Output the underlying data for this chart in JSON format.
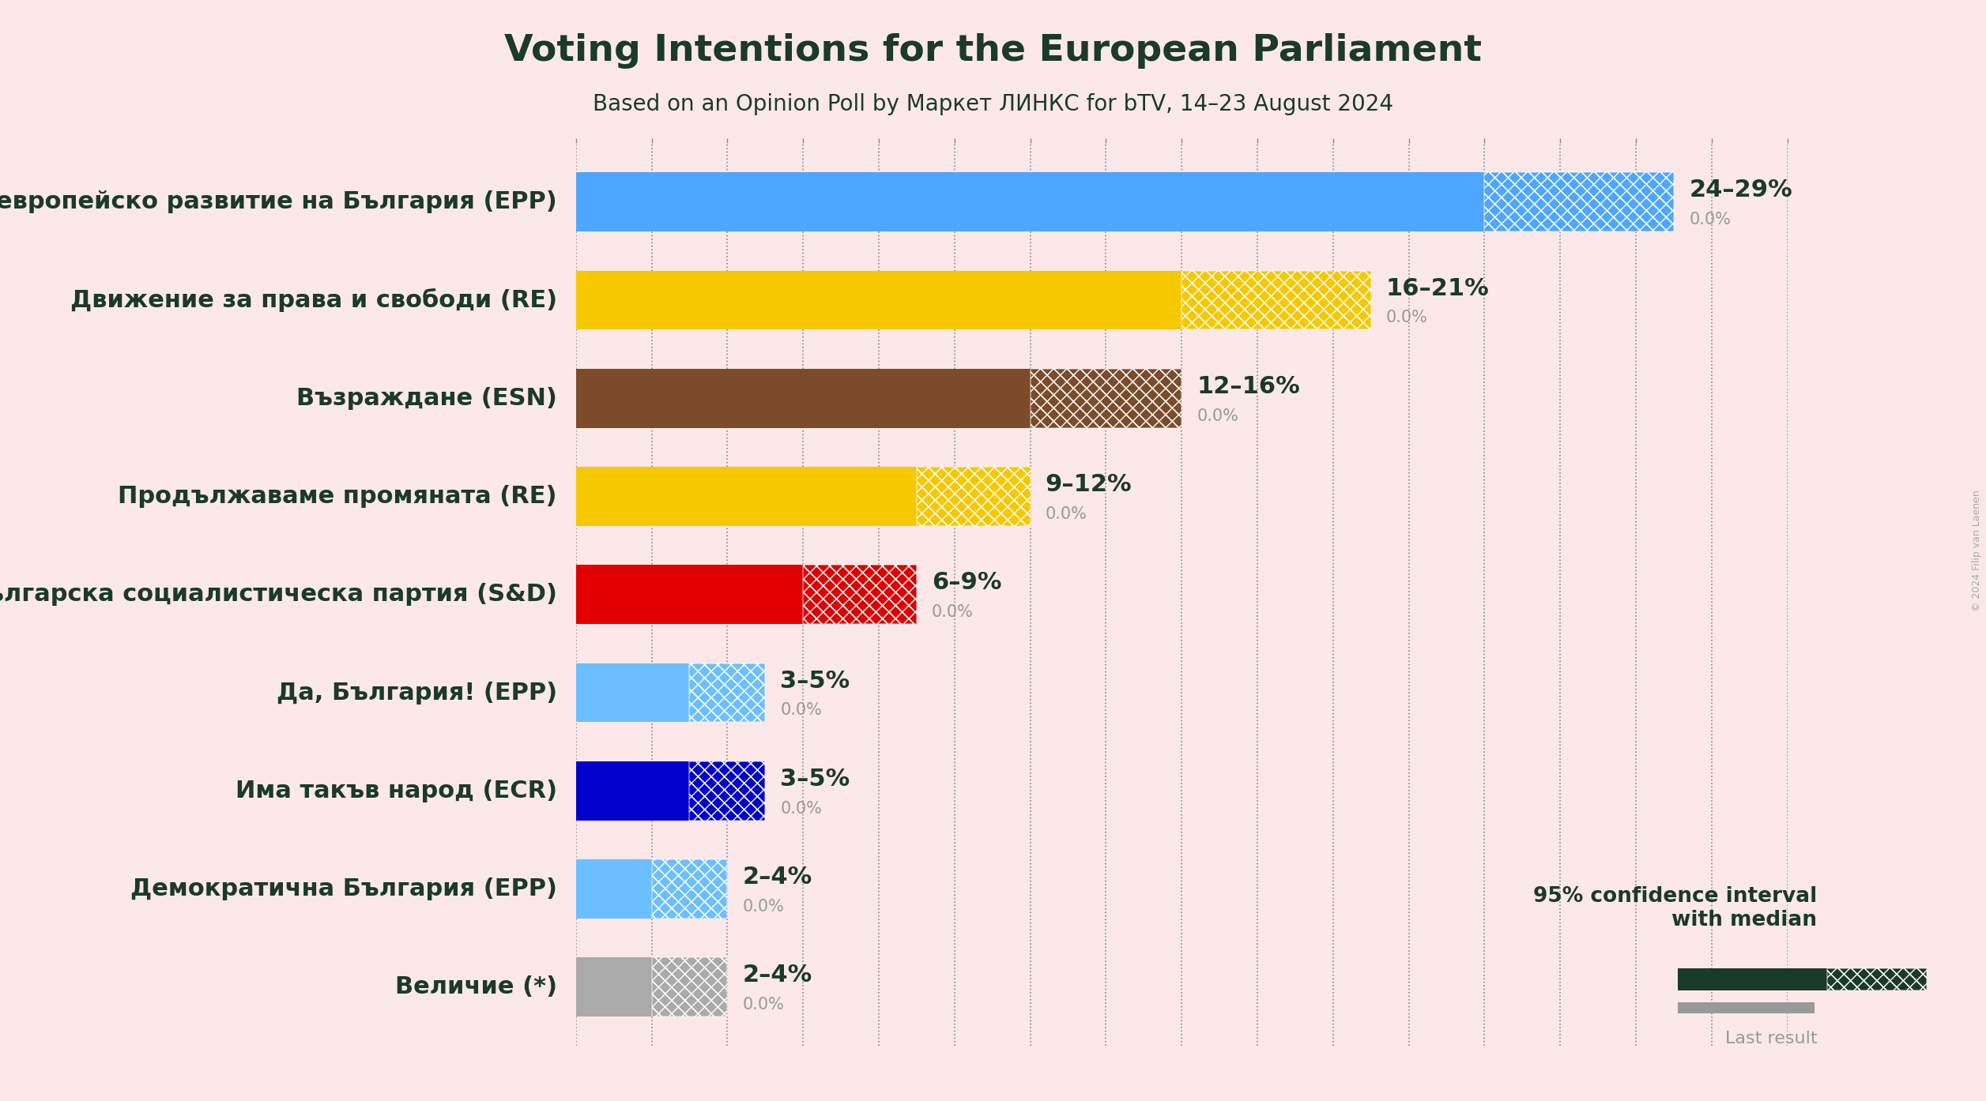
{
  "title": "Voting Intentions for the European Parliament",
  "subtitle": "Based on an Opinion Poll by Маркет ЛИНКС for bTV, 14–23 August 2024",
  "background_color": "#fce8e8",
  "parties": [
    {
      "name": "Граждани за европейско развитие на България (EPP)",
      "low": 24,
      "high": 29,
      "median": 24,
      "color": "#4da6ff",
      "label": "24–29%"
    },
    {
      "name": "Движение за права и свободи (RE)",
      "low": 16,
      "high": 21,
      "median": 16,
      "color": "#f5c800",
      "label": "16–21%"
    },
    {
      "name": "Възраждане (ESN)",
      "low": 12,
      "high": 16,
      "median": 12,
      "color": "#7b4b2a",
      "label": "12–16%"
    },
    {
      "name": "Продължаваме промяната (RE)",
      "low": 9,
      "high": 12,
      "median": 9,
      "color": "#f5c800",
      "label": "9–12%"
    },
    {
      "name": "Българска социалистическа партия (S&D)",
      "low": 6,
      "high": 9,
      "median": 6,
      "color": "#e00000",
      "label": "6–9%"
    },
    {
      "name": "Да, България! (EPP)",
      "low": 3,
      "high": 5,
      "median": 3,
      "color": "#6bbfff",
      "label": "3–5%"
    },
    {
      "name": "Има такъв народ (ECR)",
      "low": 3,
      "high": 5,
      "median": 3,
      "color": "#0000cc",
      "label": "3–5%"
    },
    {
      "name": "Демократична България (EPP)",
      "low": 2,
      "high": 4,
      "median": 2,
      "color": "#6bbfff",
      "label": "2–4%"
    },
    {
      "name": "Величие (*)",
      "low": 2,
      "high": 4,
      "median": 2,
      "color": "#aaaaaa",
      "label": "2–4%"
    }
  ],
  "xlim": [
    0,
    32
  ],
  "xtick_step": 2,
  "title_color": "#1a3a2a",
  "bar_height": 0.6,
  "legend_dark_color": "#1a3a2a",
  "legend_gray_color": "#999999",
  "copyright_text": "© 2024 Filip van Laenen",
  "label_fontsize": 22,
  "sublabel_fontsize": 15,
  "ytick_fontsize": 22,
  "title_fontsize": 34,
  "subtitle_fontsize": 20
}
